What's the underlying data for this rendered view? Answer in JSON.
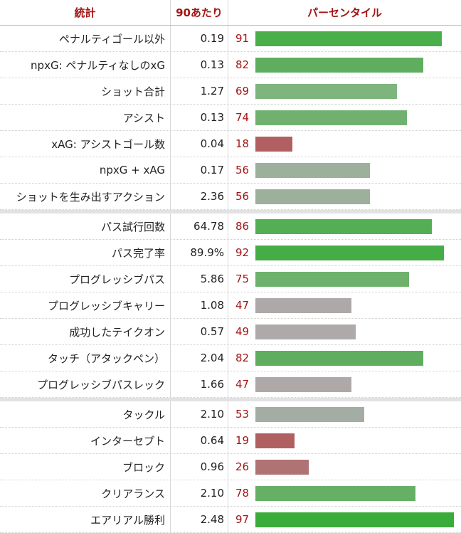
{
  "header": {
    "stat": "統計",
    "per90": "90あたり",
    "percentile": "パーセンタイル"
  },
  "groups": [
    [
      {
        "label": "ペナルティゴール以外",
        "value": "0.19",
        "pct": "91",
        "pct_num": 91,
        "color": "#4aae4a"
      },
      {
        "label": "npxG: ペナルティなしのxG",
        "value": "0.13",
        "pct": "82",
        "pct_num": 82,
        "color": "#5fae5f"
      },
      {
        "label": "ショット合計",
        "value": "1.27",
        "pct": "69",
        "pct_num": 69,
        "color": "#7db57d"
      },
      {
        "label": "アシスト",
        "value": "0.13",
        "pct": "74",
        "pct_num": 74,
        "color": "#70b170"
      },
      {
        "label": "xAG: アシストゴール数",
        "value": "0.04",
        "pct": "18",
        "pct_num": 18,
        "color": "#b06060"
      },
      {
        "label": "npxG + xAG",
        "value": "0.17",
        "pct": "56",
        "pct_num": 56,
        "color": "#9cb09c"
      },
      {
        "label": "ショットを生み出すアクション",
        "value": "2.36",
        "pct": "56",
        "pct_num": 56,
        "color": "#9cb09c"
      }
    ],
    [
      {
        "label": "パス試行回数",
        "value": "64.78",
        "pct": "86",
        "pct_num": 86,
        "color": "#54ae54"
      },
      {
        "label": "パス完了率",
        "value": "89.9%",
        "pct": "92",
        "pct_num": 92,
        "color": "#45ad45"
      },
      {
        "label": "プログレッシブパス",
        "value": "5.86",
        "pct": "75",
        "pct_num": 75,
        "color": "#6db16d"
      },
      {
        "label": "プログレッシブキャリー",
        "value": "1.08",
        "pct": "47",
        "pct_num": 47,
        "color": "#aea8a8"
      },
      {
        "label": "成功したテイクオン",
        "value": "0.57",
        "pct": "49",
        "pct_num": 49,
        "color": "#aeaaaa"
      },
      {
        "label": "タッチ（アタックペン）",
        "value": "2.04",
        "pct": "82",
        "pct_num": 82,
        "color": "#5fae5f"
      },
      {
        "label": "プログレッシブパスレック",
        "value": "1.66",
        "pct": "47",
        "pct_num": 47,
        "color": "#aea8a8"
      }
    ],
    [
      {
        "label": "タックル",
        "value": "2.10",
        "pct": "53",
        "pct_num": 53,
        "color": "#a4ada4"
      },
      {
        "label": "インターセプト",
        "value": "0.64",
        "pct": "19",
        "pct_num": 19,
        "color": "#b06060"
      },
      {
        "label": "ブロック",
        "value": "0.96",
        "pct": "26",
        "pct_num": 26,
        "color": "#b07272"
      },
      {
        "label": "クリアランス",
        "value": "2.10",
        "pct": "78",
        "pct_num": 78,
        "color": "#66b066"
      },
      {
        "label": "エアリアル勝利",
        "value": "2.48",
        "pct": "97",
        "pct_num": 97,
        "color": "#3aac3a"
      }
    ]
  ]
}
